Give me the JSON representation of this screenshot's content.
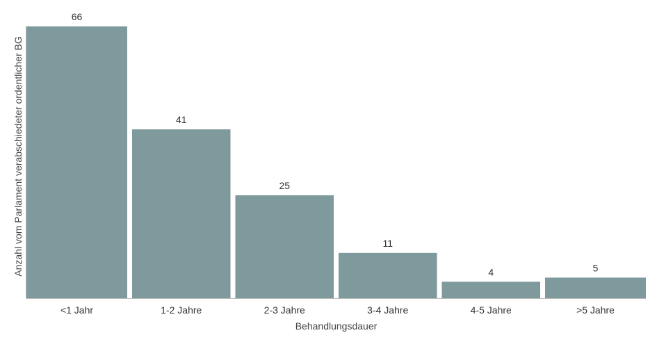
{
  "chart_data": {
    "type": "bar",
    "categories": [
      "<1 Jahr",
      "1-2 Jahre",
      "2-3 Jahre",
      "3-4 Jahre",
      "4-5 Jahre",
      ">5 Jahre"
    ],
    "values": [
      66,
      41,
      25,
      11,
      4,
      5
    ],
    "data_labels": [
      "66",
      "41",
      "25",
      "11",
      "4",
      "5"
    ],
    "xlabel": "Behandlungsdauer",
    "ylabel": "Anzahl vom Parlament verabschiedeter ordentlicher BG",
    "ylim": [
      0,
      66
    ],
    "grid": false,
    "legend": "none",
    "colors": {
      "bar": "#7f9a9c",
      "axis": "#bbbbbb"
    }
  }
}
